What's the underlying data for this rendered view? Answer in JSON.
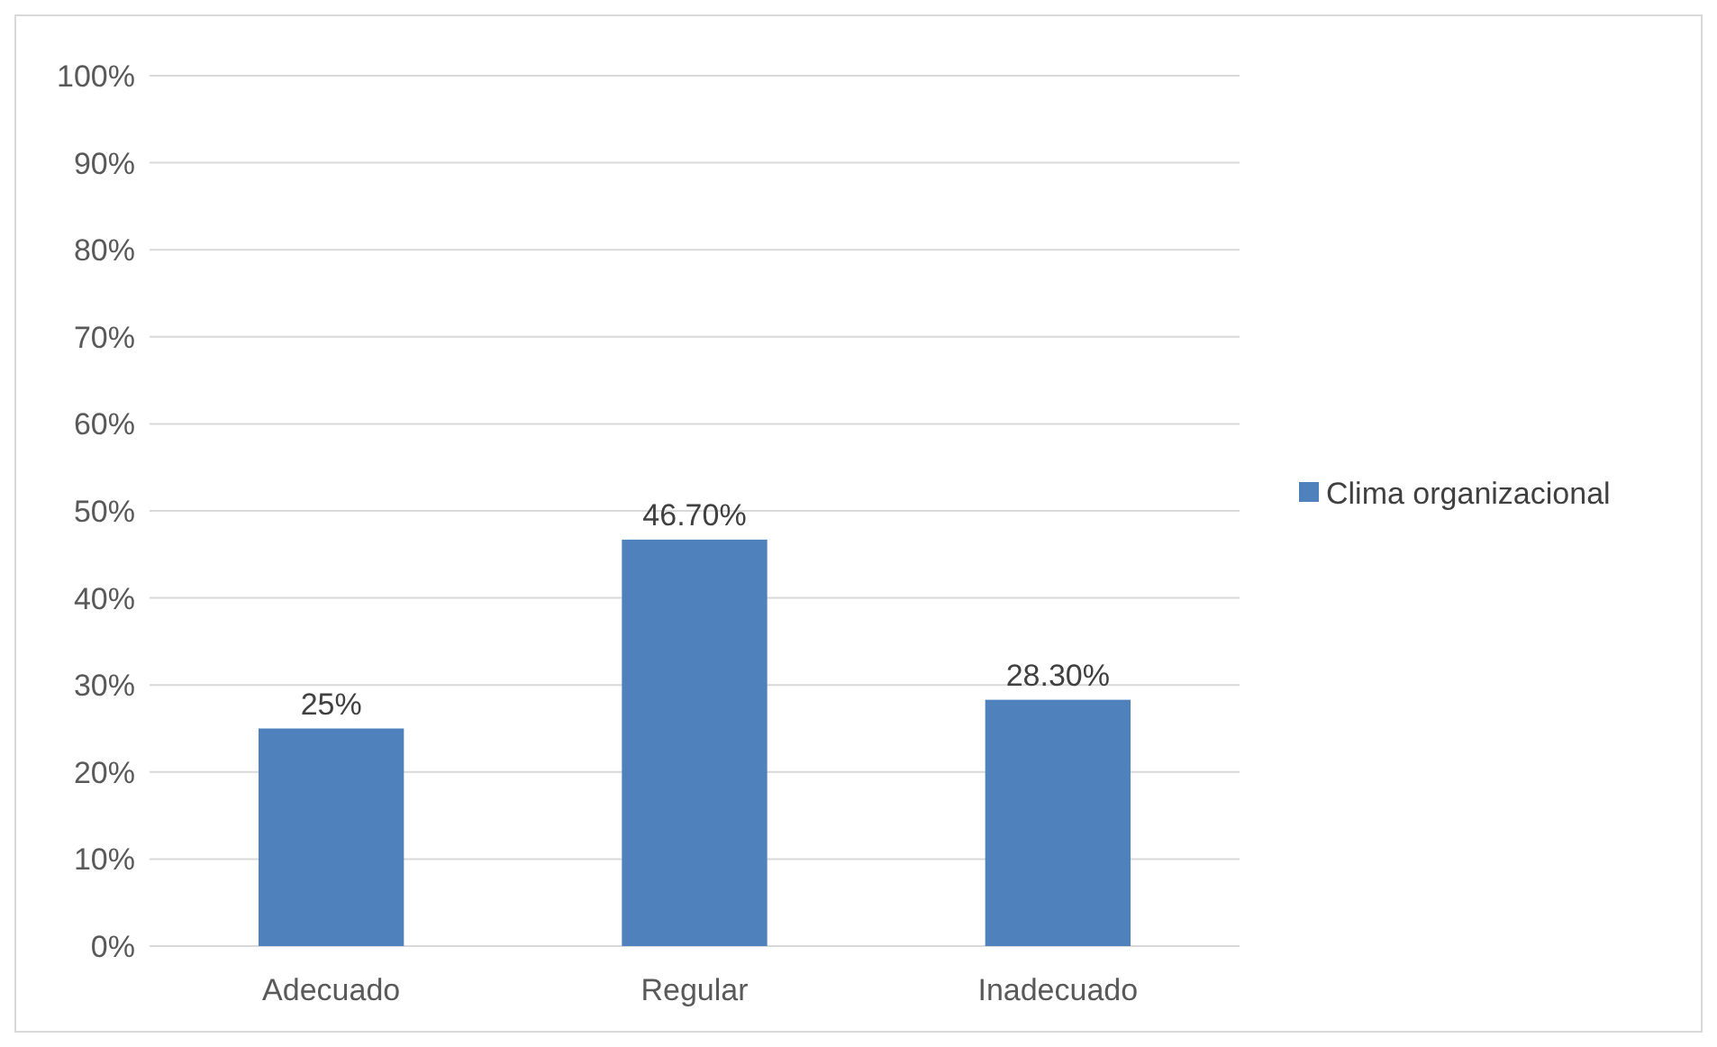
{
  "chart_data": {
    "type": "bar",
    "categories": [
      "Adecuado",
      "Regular",
      "Inadecuado"
    ],
    "series": [
      {
        "name": "Clima organizacional",
        "color": "#4f81bd",
        "values": [
          25,
          46.7,
          28.3
        ],
        "value_labels": [
          "25%",
          "46.70%",
          "28.30%"
        ]
      }
    ],
    "ylim": [
      0,
      100
    ],
    "yticks": [
      {
        "value": 0,
        "label": "0%"
      },
      {
        "value": 10,
        "label": "10%"
      },
      {
        "value": 20,
        "label": "20%"
      },
      {
        "value": 30,
        "label": "30%"
      },
      {
        "value": 40,
        "label": "40%"
      },
      {
        "value": 50,
        "label": "50%"
      },
      {
        "value": 60,
        "label": "60%"
      },
      {
        "value": 70,
        "label": "70%"
      },
      {
        "value": 80,
        "label": "80%"
      },
      {
        "value": 90,
        "label": "90%"
      },
      {
        "value": 100,
        "label": "100%"
      }
    ],
    "grid": "y",
    "legend": "right"
  }
}
